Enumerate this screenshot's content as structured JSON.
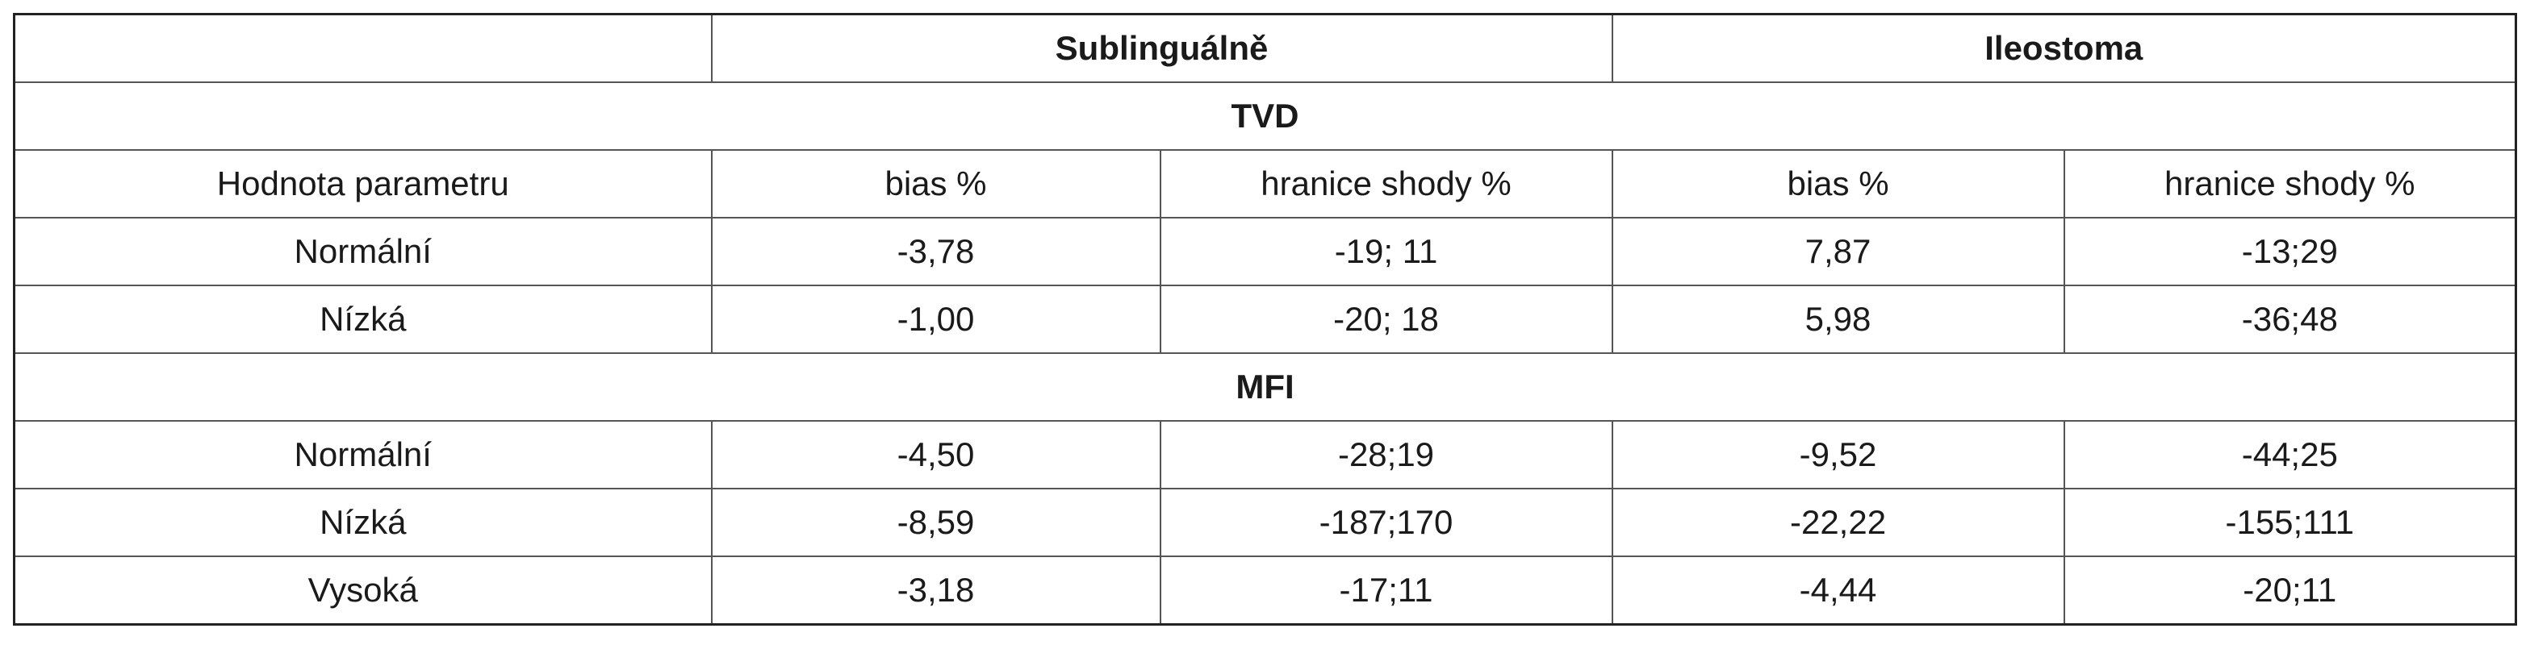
{
  "table": {
    "groups": [
      "Sublinguálně",
      "Ileostoma"
    ],
    "columns": [
      "Hodnota parametru",
      "bias %",
      "hranice shody %",
      "bias %",
      "hranice shody %"
    ],
    "sections": [
      {
        "title": "TVD",
        "rows": [
          [
            "Normální",
            "-3,78",
            "-19; 11",
            "7,87",
            "-13;29"
          ],
          [
            "Nízká",
            "-1,00",
            "-20; 18",
            "5,98",
            "-36;48"
          ]
        ]
      },
      {
        "title": "MFI",
        "rows": [
          [
            "Normální",
            "-4,50",
            "-28;19",
            "-9,52",
            "-44;25"
          ],
          [
            "Nízká",
            "-8,59",
            "-187;170",
            "-22,22",
            "-155;111"
          ],
          [
            "Vysoká",
            "-3,18",
            "-17;11",
            "-4,44",
            "-20;11"
          ]
        ]
      }
    ]
  }
}
